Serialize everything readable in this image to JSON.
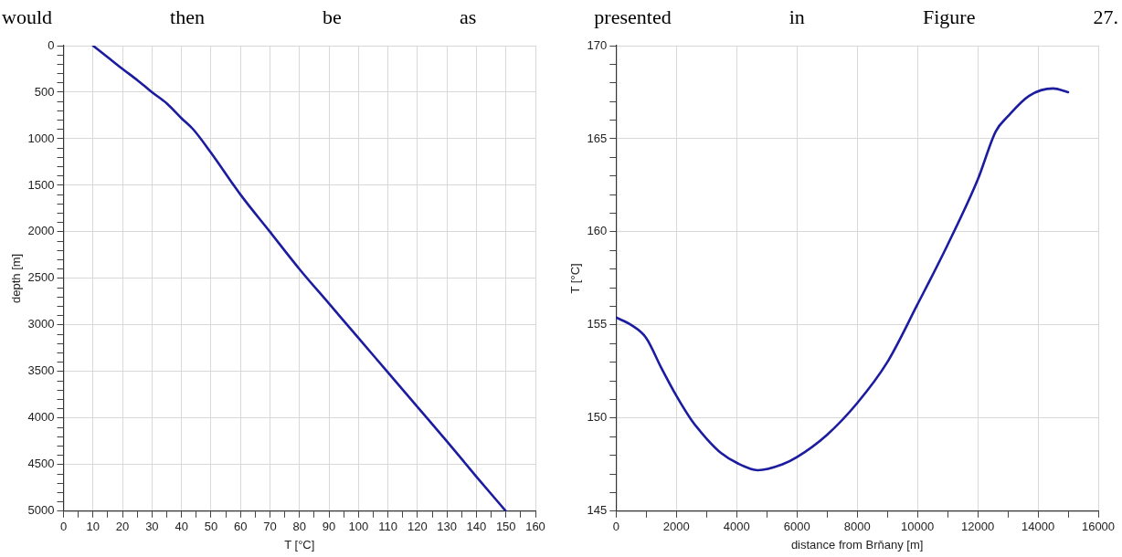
{
  "chart_data": [
    {
      "type": "line",
      "annotations": [
        "would then be as presented in Figure 27."
      ],
      "xlabel": "T [°C]",
      "ylabel": "depth [m]",
      "xlim": [
        0,
        160
      ],
      "ylim": [
        5000,
        0
      ],
      "xticks": [
        0,
        {
          "value": 5,
          "label": null
        },
        10,
        {
          "value": 15,
          "label": null
        },
        20,
        {
          "value": 25,
          "label": null
        },
        30,
        {
          "value": 35,
          "label": null
        },
        40,
        {
          "value": 45,
          "label": null
        },
        50,
        {
          "value": 55,
          "label": null
        },
        60,
        {
          "value": 65,
          "label": null
        },
        70,
        {
          "value": 75,
          "label": null
        },
        80,
        {
          "value": 85,
          "label": null
        },
        90,
        {
          "value": 95,
          "label": null
        },
        100,
        {
          "value": 105,
          "label": null
        },
        110,
        {
          "value": 115,
          "label": null
        },
        120,
        {
          "value": 125,
          "label": null
        },
        130,
        {
          "value": 135,
          "label": null
        },
        140,
        {
          "value": 145,
          "label": null
        },
        150,
        {
          "value": 155,
          "label": null
        },
        160
      ],
      "yticks": [
        0,
        {
          "value": 100,
          "label": null
        },
        {
          "value": 200,
          "label": null
        },
        {
          "value": 300,
          "label": null
        },
        {
          "value": 400,
          "label": null
        },
        500,
        {
          "value": 600,
          "label": null
        },
        {
          "value": 700,
          "label": null
        },
        {
          "value": 800,
          "label": null
        },
        {
          "value": 900,
          "label": null
        },
        1000,
        {
          "value": 1100,
          "label": null
        },
        {
          "value": 1200,
          "label": null
        },
        {
          "value": 1300,
          "label": null
        },
        {
          "value": 1400,
          "label": null
        },
        1500,
        {
          "value": 1600,
          "label": null
        },
        {
          "value": 1700,
          "label": null
        },
        {
          "value": 1800,
          "label": null
        },
        {
          "value": 1900,
          "label": null
        },
        2000,
        {
          "value": 2100,
          "label": null
        },
        {
          "value": 2200,
          "label": null
        },
        {
          "value": 2300,
          "label": null
        },
        {
          "value": 2400,
          "label": null
        },
        2500,
        {
          "value": 2600,
          "label": null
        },
        {
          "value": 2700,
          "label": null
        },
        {
          "value": 2800,
          "label": null
        },
        {
          "value": 2900,
          "label": null
        },
        3000,
        {
          "value": 3100,
          "label": null
        },
        {
          "value": 3200,
          "label": null
        },
        {
          "value": 3300,
          "label": null
        },
        {
          "value": 3400,
          "label": null
        },
        3500,
        {
          "value": 3600,
          "label": null
        },
        {
          "value": 3700,
          "label": null
        },
        {
          "value": 3800,
          "label": null
        },
        {
          "value": 3900,
          "label": null
        },
        4000,
        {
          "value": 4100,
          "label": null
        },
        {
          "value": 4200,
          "label": null
        },
        {
          "value": 4300,
          "label": null
        },
        {
          "value": 4400,
          "label": null
        },
        4500,
        {
          "value": 4600,
          "label": null
        },
        {
          "value": 4700,
          "label": null
        },
        {
          "value": 4800,
          "label": null
        },
        {
          "value": 4900,
          "label": null
        },
        5000
      ],
      "grid": true,
      "legend": false,
      "marker": "none",
      "line_style": "solid",
      "series": [
        {
          "color": "#1c1ca0",
          "x": [
            10,
            16,
            20,
            25,
            30,
            35,
            40,
            44,
            50,
            60,
            70,
            80,
            90,
            100,
            110,
            120,
            130,
            140,
            150
          ],
          "values": [
            0,
            150,
            250,
            370,
            500,
            620,
            780,
            900,
            1150,
            1600,
            2000,
            2400,
            2770,
            3140,
            3510,
            3880,
            4250,
            4630,
            5000
          ]
        }
      ]
    },
    {
      "type": "line",
      "xlabel": "distance from Brňany [m]",
      "ylabel": "T [°C]",
      "xlim": [
        0,
        16000
      ],
      "ylim": [
        145,
        170
      ],
      "xticks": [
        0,
        {
          "value": 1000,
          "label": null
        },
        2000,
        {
          "value": 3000,
          "label": null
        },
        4000,
        {
          "value": 5000,
          "label": null
        },
        6000,
        {
          "value": 7000,
          "label": null
        },
        8000,
        {
          "value": 9000,
          "label": null
        },
        10000,
        {
          "value": 11000,
          "label": null
        },
        12000,
        {
          "value": 13000,
          "label": null
        },
        14000,
        {
          "value": 15000,
          "label": null
        },
        16000
      ],
      "yticks": [
        145,
        {
          "value": 146,
          "label": null
        },
        {
          "value": 147,
          "label": null
        },
        {
          "value": 148,
          "label": null
        },
        {
          "value": 149,
          "label": null
        },
        150,
        {
          "value": 151,
          "label": null
        },
        {
          "value": 152,
          "label": null
        },
        {
          "value": 153,
          "label": null
        },
        {
          "value": 154,
          "label": null
        },
        155,
        {
          "value": 156,
          "label": null
        },
        {
          "value": 157,
          "label": null
        },
        {
          "value": 158,
          "label": null
        },
        {
          "value": 159,
          "label": null
        },
        160,
        {
          "value": 161,
          "label": null
        },
        {
          "value": 162,
          "label": null
        },
        {
          "value": 163,
          "label": null
        },
        {
          "value": 164,
          "label": null
        },
        165,
        {
          "value": 166,
          "label": null
        },
        {
          "value": 167,
          "label": null
        },
        {
          "value": 168,
          "label": null
        },
        {
          "value": 169,
          "label": null
        },
        170
      ],
      "grid": true,
      "legend": false,
      "marker": "none",
      "line_style": "solid",
      "series": [
        {
          "color": "#1c1ca0",
          "x": [
            0,
            500,
            1000,
            1500,
            2000,
            2500,
            3000,
            3500,
            4000,
            4700,
            5500,
            6000,
            7000,
            8000,
            9000,
            10000,
            11000,
            12000,
            12600,
            13000,
            13700,
            14500,
            15000
          ],
          "values": [
            155.4,
            155,
            154.3,
            152.7,
            151.2,
            149.9,
            148.9,
            148.1,
            147.6,
            147.2,
            147.5,
            147.9,
            149.1,
            150.8,
            153,
            156.1,
            159.3,
            162.8,
            165.4,
            166.2,
            167.3,
            167.7,
            167.5
          ]
        }
      ]
    }
  ]
}
